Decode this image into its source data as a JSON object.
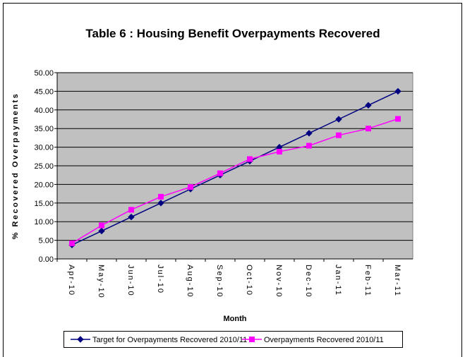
{
  "chart_data": {
    "type": "line",
    "title": "Table 6 : Housing Benefit Overpayments Recovered",
    "x_label": "Month",
    "y_label": "% Recovered Overpayments",
    "categories": [
      "Apr-10",
      "May-10",
      "Jun-10",
      "Jul-10",
      "Aug-10",
      "Sep-10",
      "Oct-10",
      "Nov-10",
      "Dec-10",
      "Jan-11",
      "Feb-11",
      "Mar-11"
    ],
    "series": [
      {
        "name": "Target for Overpayments Recovered 2010/11",
        "color": "#000080",
        "marker": "diamond",
        "values": [
          3.75,
          7.5,
          11.25,
          15,
          18.75,
          22.5,
          26.25,
          30,
          33.75,
          37.5,
          41.25,
          45
        ]
      },
      {
        "name": "Overpayments Recovered 2010/11",
        "color": "#ff00ff",
        "marker": "square",
        "values": [
          4.2,
          9.0,
          13.2,
          16.7,
          19.3,
          23.0,
          26.8,
          28.8,
          30.4,
          33.2,
          35.0,
          37.6
        ]
      }
    ],
    "ylim": [
      0,
      50
    ],
    "yticks": [
      {
        "value": 0,
        "label": "0.00"
      },
      {
        "value": 5,
        "label": "5.00"
      },
      {
        "value": 10,
        "label": "10.00"
      },
      {
        "value": 15,
        "label": "15.00"
      },
      {
        "value": 20,
        "label": "20.00"
      },
      {
        "value": 25,
        "label": "25.00"
      },
      {
        "value": 30,
        "label": "30.00"
      },
      {
        "value": 35,
        "label": "35.00"
      },
      {
        "value": 40,
        "label": "40.00"
      },
      {
        "value": 45,
        "label": "45.00"
      },
      {
        "value": 50,
        "label": "50.00"
      }
    ],
    "grid": true,
    "legend": "bottom"
  }
}
